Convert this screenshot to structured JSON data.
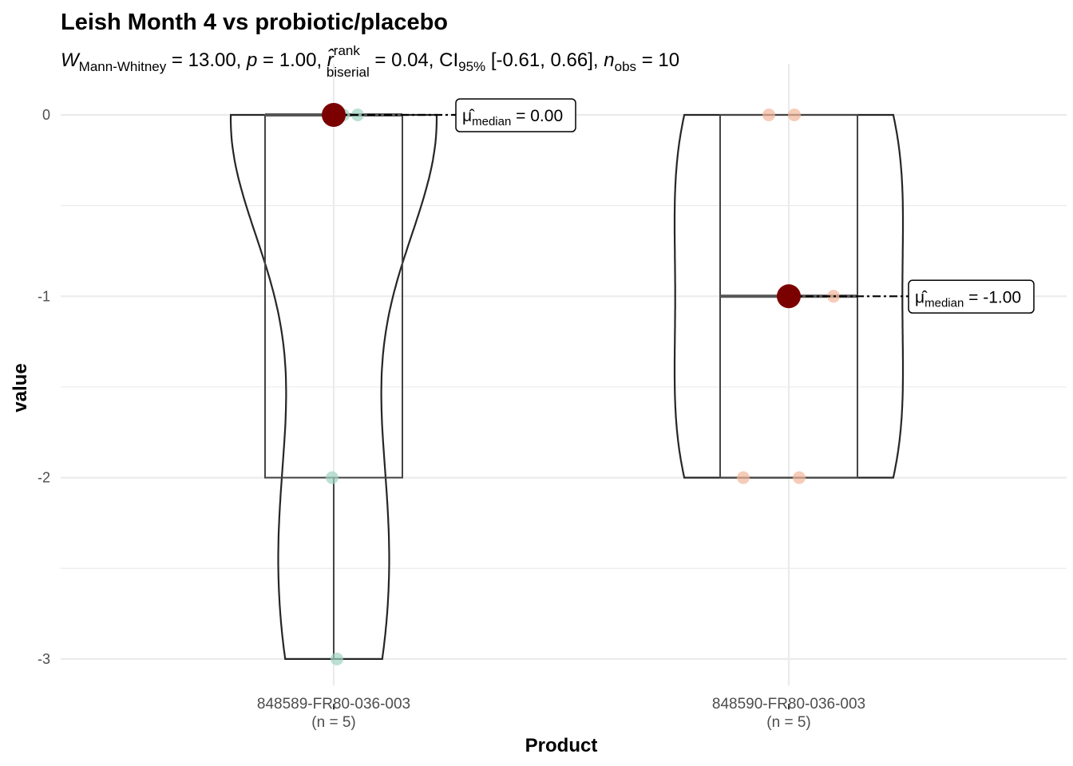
{
  "chart_data": {
    "type": "violin-box",
    "title": "Leish Month 4 vs probiotic/placebo",
    "subtitle": {
      "w_symbol": "W",
      "w_sub": "Mann-Whitney",
      "w_value": " = 13.00, ",
      "p_symbol": "p",
      "p_value": " = 1.00, ",
      "r_symbol": "r̂",
      "r_sup": "rank",
      "r_sub": "biserial",
      "r_value": " = 0.04, CI",
      "ci_sub": "95%",
      "ci_value": " [-0.61, 0.66], ",
      "n_symbol": "n",
      "n_sub": "obs",
      "n_value": " = 10"
    },
    "xlabel": "Product",
    "ylabel": "value",
    "ylim": [
      -3.12,
      0.15
    ],
    "yticks": [
      0,
      -1,
      -2,
      -3
    ],
    "grid": true,
    "categories": [
      {
        "name": "848589-FR80-036-003",
        "n_label": "(n = 5)",
        "points": [
          0,
          0,
          0,
          -2,
          -3
        ],
        "box": {
          "q1": -2,
          "median": 0,
          "q3": 0,
          "lower": -3,
          "upper": 0
        },
        "median_label": {
          "mu": "μ̂",
          "sub": "median",
          "value": " = 0.00"
        },
        "color": "#9fd3c1"
      },
      {
        "name": "848590-FR80-036-003",
        "n_label": "(n = 5)",
        "points": [
          0,
          0,
          -1,
          -2,
          -2
        ],
        "box": {
          "q1": -2,
          "median": -1,
          "q3": 0,
          "lower": -2,
          "upper": 0
        },
        "median_label": {
          "mu": "μ̂",
          "sub": "median",
          "value": " = -1.00"
        },
        "color": "#f2b79b"
      }
    ],
    "median_point_color": "#7b0000"
  }
}
